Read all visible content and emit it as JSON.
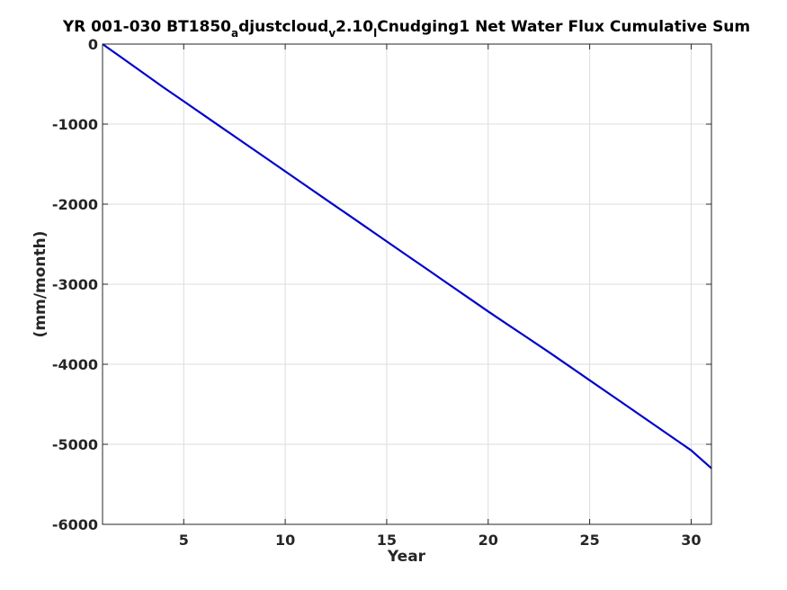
{
  "chart_data": {
    "type": "line",
    "title_parts": {
      "a": "YR 001-030 BT1850",
      "sub1": "a",
      "b": "djustcloud",
      "sub2": "v",
      "c": "2.10",
      "sub3": "l",
      "d": "Cnudging1 Net Water Flux Cumulative Sum"
    },
    "xlabel": "Year",
    "ylabel": "(mm/month)",
    "xlim": [
      1,
      31
    ],
    "ylim": [
      -6000,
      0
    ],
    "xticks": [
      5,
      10,
      15,
      20,
      25,
      30
    ],
    "yticks": [
      0,
      -1000,
      -2000,
      -3000,
      -4000,
      -5000,
      -6000
    ],
    "grid": true,
    "series": [
      {
        "color": "#0000cc",
        "x": [
          1,
          2,
          3,
          4,
          5,
          6,
          7,
          8,
          9,
          10,
          11,
          12,
          13,
          14,
          15,
          16,
          17,
          18,
          19,
          20,
          21,
          22,
          23,
          24,
          25,
          26,
          27,
          28,
          29,
          30,
          31
        ],
        "y": [
          0,
          -180,
          -360,
          -540,
          -715,
          -890,
          -1065,
          -1240,
          -1415,
          -1590,
          -1765,
          -1940,
          -2115,
          -2290,
          -2465,
          -2640,
          -2815,
          -2990,
          -3165,
          -3340,
          -3510,
          -3680,
          -3850,
          -4025,
          -4200,
          -4375,
          -4550,
          -4725,
          -4900,
          -5075,
          -5300
        ]
      }
    ]
  }
}
